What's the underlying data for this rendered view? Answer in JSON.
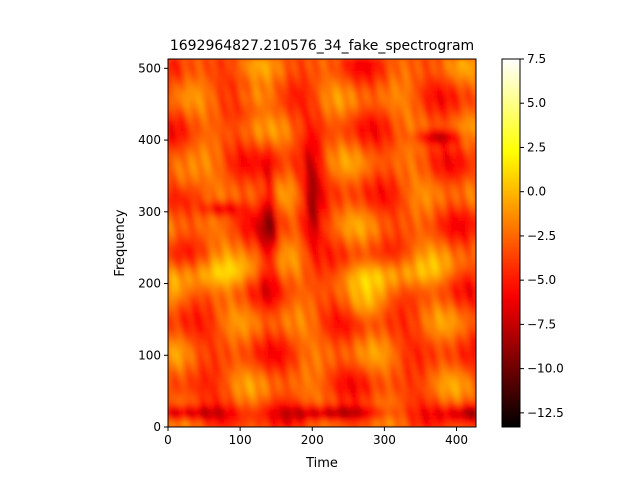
{
  "chart_data": {
    "type": "heatmap",
    "title": "1692964827.210576_34_fake_spectrogram",
    "xlabel": "Time",
    "ylabel": "Frequency",
    "xlim": [
      0,
      427
    ],
    "ylim": [
      0,
      513
    ],
    "x_ticks": [
      0,
      100,
      200,
      300,
      400
    ],
    "y_ticks": [
      0,
      100,
      200,
      300,
      400,
      500
    ],
    "colormap": "hot",
    "color_range": [
      -13.3,
      7.5
    ],
    "colorbar_ticks": [
      7.5,
      5.0,
      2.5,
      0.0,
      -2.5,
      -5.0,
      -7.5,
      -10.0,
      -12.5
    ],
    "colorbar_tick_labels": [
      "7.5",
      "5.0",
      "2.5",
      "0.0",
      "−2.5",
      "−5.0",
      "−7.5",
      "−10.0",
      "−12.5"
    ],
    "grid": false,
    "legend": "none"
  }
}
